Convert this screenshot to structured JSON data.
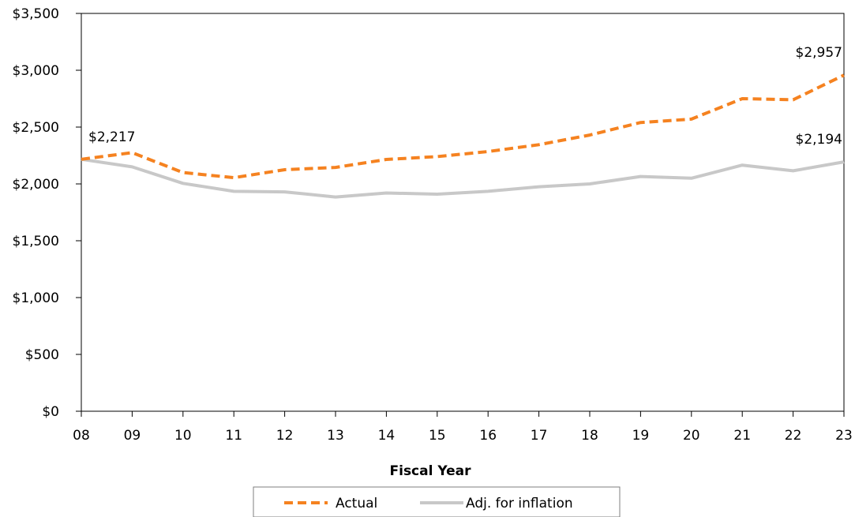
{
  "chart_data": {
    "type": "line",
    "title": "",
    "xlabel": "Fiscal Year",
    "ylabel": "",
    "categories": [
      "08",
      "09",
      "10",
      "11",
      "12",
      "13",
      "14",
      "15",
      "16",
      "17",
      "18",
      "19",
      "20",
      "21",
      "22",
      "23"
    ],
    "y_tick_labels": [
      "$0",
      "$500",
      "$1,000",
      "$1,500",
      "$2,000",
      "$2,500",
      "$3,000",
      "$3,500"
    ],
    "ylim": [
      0,
      3500
    ],
    "y_tick_step": 500,
    "grid": false,
    "legend_position": "bottom",
    "series": [
      {
        "name": "Actual",
        "style": "dashed",
        "color": "#F58220",
        "values": [
          2217,
          2275,
          2100,
          2055,
          2125,
          2145,
          2215,
          2240,
          2285,
          2345,
          2430,
          2540,
          2570,
          2750,
          2740,
          2957
        ]
      },
      {
        "name": "Adj. for inflation",
        "style": "solid",
        "color": "#C8C8C8",
        "values": [
          2217,
          2150,
          2005,
          1935,
          1930,
          1885,
          1920,
          1910,
          1935,
          1975,
          2000,
          2065,
          2050,
          2165,
          2115,
          2194
        ]
      }
    ],
    "annotations": [
      {
        "text": "$2,217",
        "series": 0,
        "index": 0
      },
      {
        "text": "$2,957",
        "series": 0,
        "index": 15
      },
      {
        "text": "$2,194",
        "series": 1,
        "index": 15
      }
    ],
    "legend": {
      "items": [
        "Actual",
        "Adj. for inflation"
      ]
    }
  }
}
